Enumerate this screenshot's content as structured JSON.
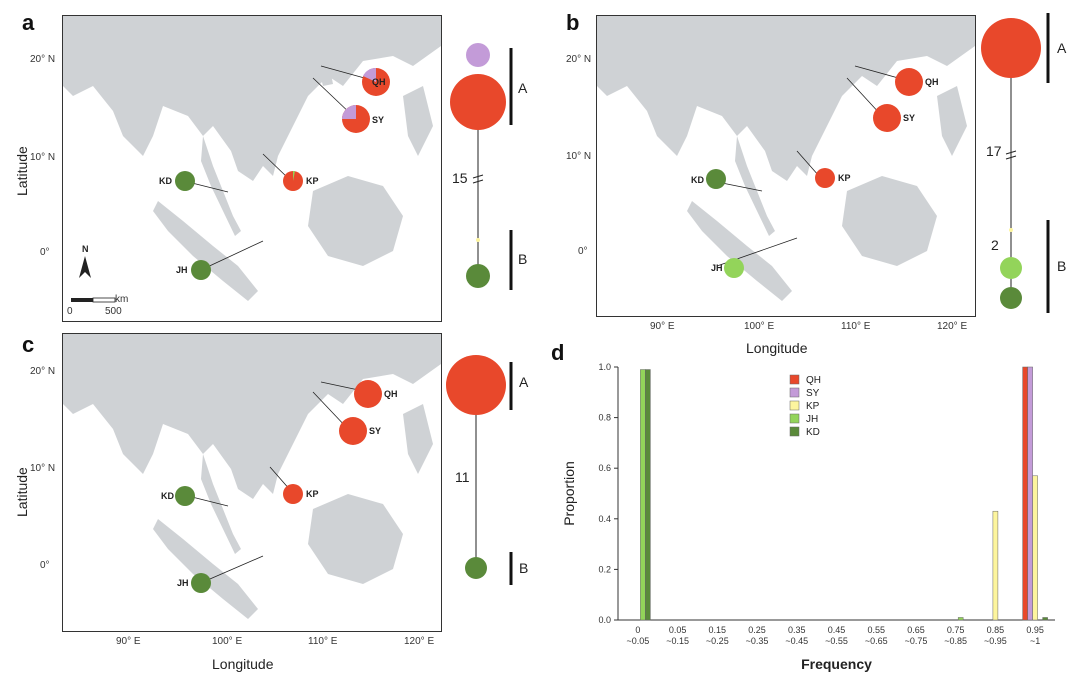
{
  "panels": {
    "a": {
      "label": "a",
      "haplo_A": "A",
      "haplo_B": "B",
      "steps": "15"
    },
    "b": {
      "label": "b",
      "haplo_A": "A",
      "haplo_B": "B",
      "steps": "17",
      "steps2": "2"
    },
    "c": {
      "label": "c",
      "haplo_A": "A",
      "haplo_B": "B",
      "steps": "11"
    },
    "d": {
      "label": "d"
    }
  },
  "map": {
    "sites": [
      "QH",
      "SY",
      "KP",
      "KD",
      "JH"
    ],
    "lat_ticks": [
      "20° N",
      "10° N",
      "0°"
    ],
    "lon_ticks": [
      "90° E",
      "100° E",
      "110° E",
      "120° E"
    ],
    "xlabel": "Longitude",
    "ylabel": "Latitude",
    "north": "N",
    "scale_unit": "km",
    "scale_0": "0",
    "scale_500": "500"
  },
  "colors": {
    "red": "#e8482b",
    "purple": "#c39bd8",
    "dark_green": "#5a8a3a",
    "light_green": "#93d45a",
    "yellow": "#fdf59e",
    "land": "#cfd2d5",
    "sea": "#ffffff"
  },
  "chart_data": {
    "type": "bar",
    "categories": [
      "0\n~0.05",
      "0.05\n~0.15",
      "0.15\n~0.25",
      "0.25\n~0.35",
      "0.35\n~0.45",
      "0.45\n~0.55",
      "0.55\n~0.65",
      "0.65\n~0.75",
      "0.75\n~0.85",
      "0.85\n~0.95",
      "0.95\n~1"
    ],
    "series": [
      {
        "name": "QH",
        "color": "#e8482b",
        "values": [
          0,
          0,
          0,
          0,
          0,
          0,
          0,
          0,
          0,
          0,
          1.0
        ]
      },
      {
        "name": "SY",
        "color": "#c39bd8",
        "values": [
          0,
          0,
          0,
          0,
          0,
          0,
          0,
          0,
          0,
          0,
          1.0
        ]
      },
      {
        "name": "KP",
        "color": "#fdf59e",
        "values": [
          0,
          0,
          0,
          0,
          0,
          0,
          0,
          0,
          0,
          0.43,
          0.57
        ]
      },
      {
        "name": "JH",
        "color": "#93d45a",
        "values": [
          0.99,
          0,
          0,
          0,
          0,
          0,
          0,
          0,
          0.01,
          0,
          0
        ]
      },
      {
        "name": "KD",
        "color": "#5a8a3a",
        "values": [
          0.99,
          0,
          0,
          0,
          0,
          0,
          0,
          0,
          0,
          0,
          0.01
        ]
      }
    ],
    "xlabel": "Frequency",
    "ylabel": "Proportion",
    "ylim": [
      0,
      1.0
    ],
    "yticks": [
      "0.0",
      "0.2",
      "0.4",
      "0.6",
      "0.8",
      "1.0"
    ],
    "legend": "top-center"
  }
}
